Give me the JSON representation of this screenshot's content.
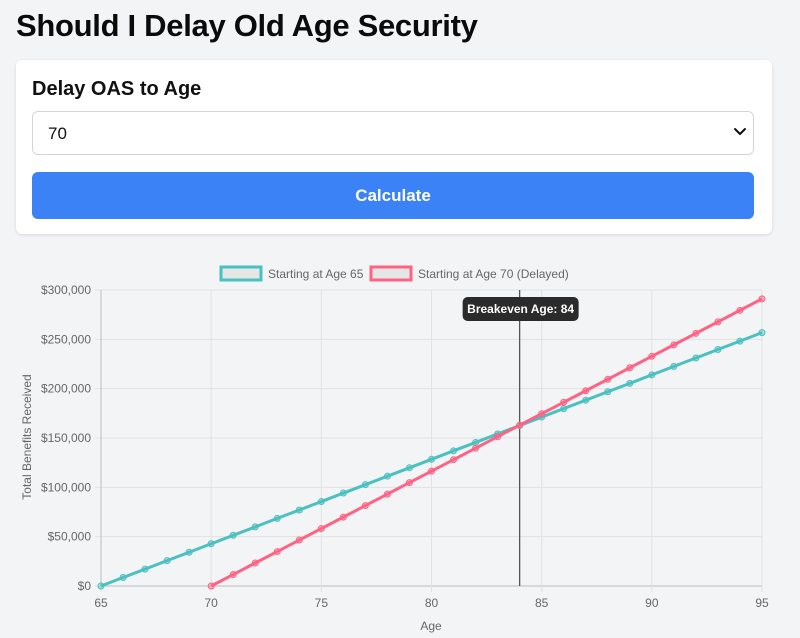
{
  "header": {
    "title": "Should I Delay Old Age Security"
  },
  "form": {
    "label": "Delay OAS to Age",
    "selected_age": "70",
    "button_label": "Calculate"
  },
  "colors": {
    "accent": "#3b82f6",
    "series_65": "#4bc0c0",
    "series_70": "#ff6384"
  },
  "chart_data": {
    "type": "line",
    "xlabel": "Age",
    "ylabel": "Total Benefits Received",
    "xlim": [
      65,
      95
    ],
    "ylim": [
      0,
      300000
    ],
    "x_ticks": [
      "65",
      "70",
      "75",
      "80",
      "85",
      "90",
      "95"
    ],
    "y_ticks": [
      "$0",
      "$50,000",
      "$100,000",
      "$150,000",
      "$200,000",
      "$250,000",
      "$300,000"
    ],
    "grid": true,
    "legend_position": "top",
    "series": [
      {
        "name": "Starting at Age 65",
        "x": [
          65,
          66,
          67,
          68,
          69,
          70,
          71,
          72,
          73,
          74,
          75,
          76,
          77,
          78,
          79,
          80,
          81,
          82,
          83,
          84,
          85,
          86,
          87,
          88,
          89,
          90,
          91,
          92,
          93,
          94,
          95
        ],
        "values": [
          0,
          8600,
          17100,
          25700,
          34200,
          42800,
          51400,
          59900,
          68500,
          77000,
          85600,
          94200,
          102700,
          111300,
          119800,
          128400,
          137000,
          145500,
          154100,
          162600,
          171200,
          179800,
          188300,
          196900,
          205400,
          214000,
          222600,
          231100,
          239700,
          248200,
          256800
        ],
        "color": "#4bc0c0"
      },
      {
        "name": "Starting at Age 70 (Delayed)",
        "x": [
          70,
          71,
          72,
          73,
          74,
          75,
          76,
          77,
          78,
          79,
          80,
          81,
          82,
          83,
          84,
          85,
          86,
          87,
          88,
          89,
          90,
          91,
          92,
          93,
          94,
          95
        ],
        "values": [
          0,
          11600,
          23300,
          34900,
          46600,
          58200,
          69800,
          81500,
          93100,
          104800,
          116400,
          128000,
          139700,
          151300,
          163000,
          174600,
          186200,
          197900,
          209500,
          221200,
          232800,
          244400,
          256100,
          267700,
          279400,
          291000
        ],
        "color": "#ff6384"
      }
    ],
    "annotation": {
      "x": 84,
      "label": "Breakeven Age: 84"
    }
  }
}
